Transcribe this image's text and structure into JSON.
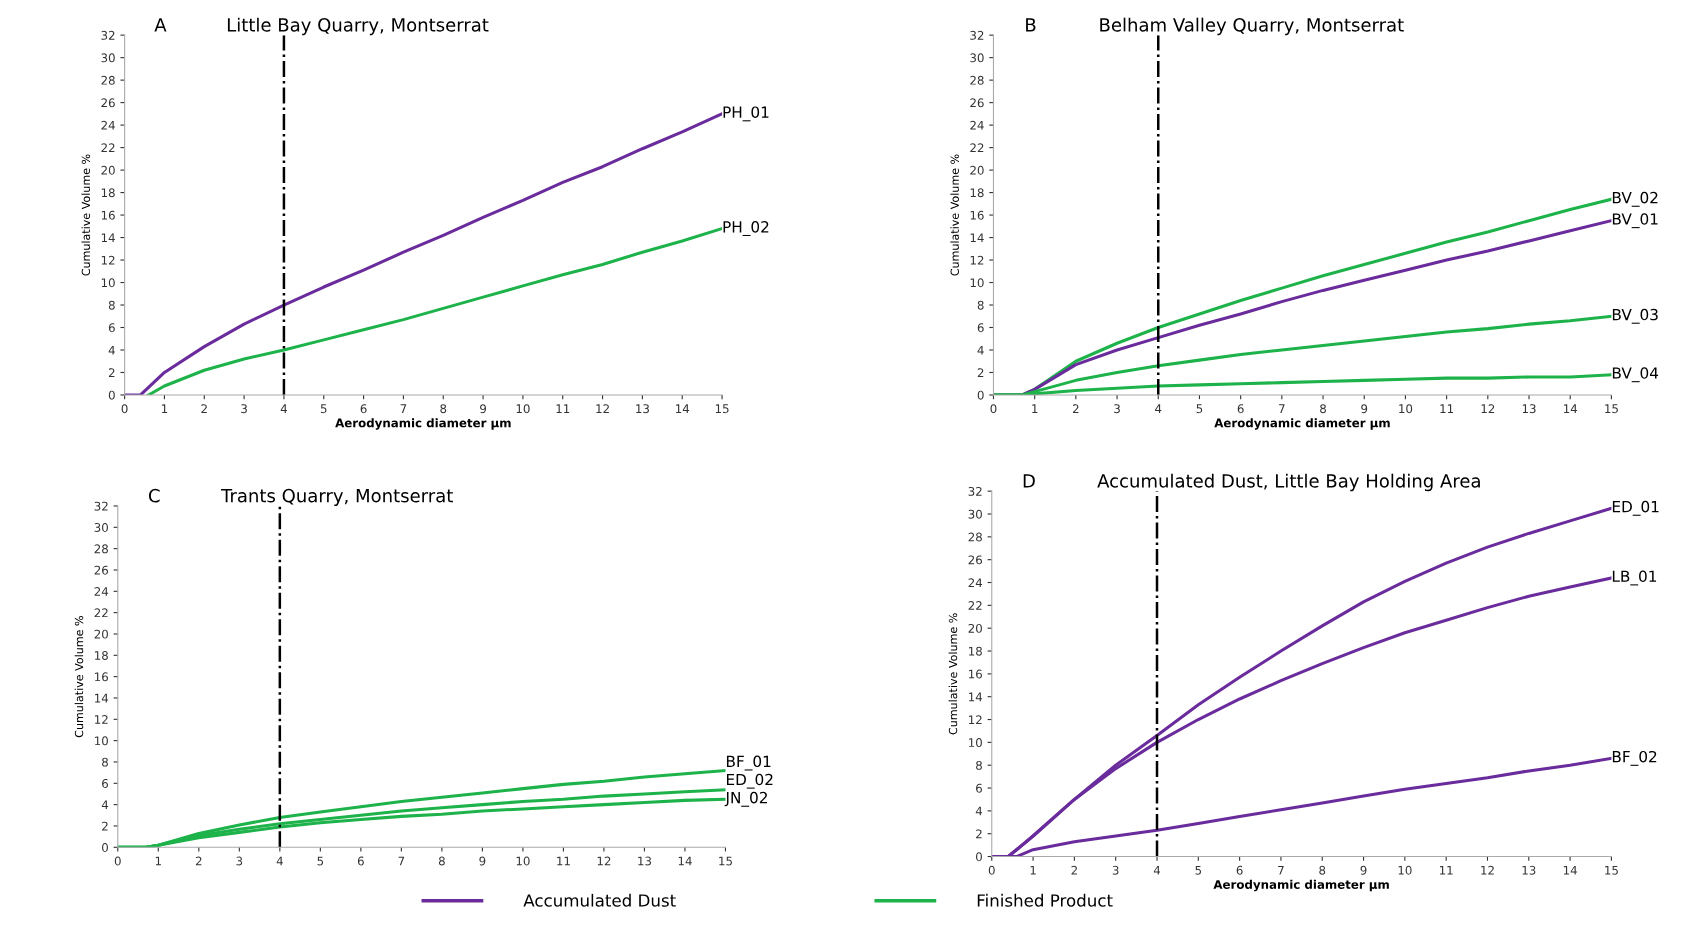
{
  "chart_data": [
    {
      "type": "line",
      "title": "Little Bay Quarry, Montserrat",
      "xlabel": "Aerodynamic diameter µm",
      "ylabel": "Cumulative Volume %",
      "annotations": [
        "A"
      ],
      "xlim": [
        0,
        15
      ],
      "ylim": [
        0,
        32
      ],
      "xticks": [
        0,
        1,
        2,
        3,
        4,
        5,
        6,
        7,
        8,
        9,
        10,
        11,
        12,
        13,
        14,
        15
      ],
      "yticks": [
        0,
        2,
        4,
        6,
        8,
        10,
        12,
        14,
        16,
        18,
        20,
        22,
        24,
        26,
        28,
        30,
        32
      ],
      "grid": false,
      "marker": "none",
      "line_style": "solid",
      "ref_lines": [
        {
          "axis": "x",
          "value": 4,
          "color": "#000000",
          "line_style": "dashdot"
        }
      ],
      "series": [
        {
          "name": "PH_01",
          "color": "#6a2c9c",
          "x": [
            0,
            0.4,
            1,
            2,
            2.5,
            3,
            4,
            5,
            6,
            7,
            8,
            9,
            10,
            11,
            12,
            13,
            14,
            15
          ],
          "values": [
            0,
            0,
            2,
            4.3,
            5.3,
            6.3,
            8,
            9.6,
            11.1,
            12.7,
            14.2,
            15.8,
            17.3,
            18.9,
            20.3,
            21.9,
            23.4,
            25
          ]
        },
        {
          "name": "PH_02",
          "color": "#1db34a",
          "x": [
            0.6,
            1,
            2,
            3,
            4,
            5,
            6,
            7,
            8,
            9,
            10,
            11,
            12,
            13,
            14,
            15
          ],
          "values": [
            0,
            0.8,
            2.2,
            3.2,
            4,
            4.9,
            5.8,
            6.7,
            7.7,
            8.7,
            9.7,
            10.7,
            11.6,
            12.7,
            13.7,
            14.8
          ]
        }
      ]
    },
    {
      "type": "line",
      "title": "Belham Valley Quarry, Montserrat",
      "xlabel": "Aerodynamic diameter µm",
      "ylabel": "Cumulative Volume %",
      "annotations": [
        "B"
      ],
      "xlim": [
        0,
        15
      ],
      "ylim": [
        0,
        32
      ],
      "xticks": [
        0,
        1,
        2,
        3,
        4,
        5,
        6,
        7,
        8,
        9,
        10,
        11,
        12,
        13,
        14,
        15
      ],
      "yticks": [
        0,
        2,
        4,
        6,
        8,
        10,
        12,
        14,
        16,
        18,
        20,
        22,
        24,
        26,
        28,
        30,
        32
      ],
      "grid": false,
      "marker": "none",
      "line_style": "solid",
      "ref_lines": [
        {
          "axis": "x",
          "value": 4,
          "color": "#000000",
          "line_style": "dashdot"
        }
      ],
      "series": [
        {
          "name": "BV_02",
          "color": "#1db34a",
          "x": [
            0,
            0.7,
            1,
            2,
            3,
            4,
            5,
            6,
            7,
            8,
            9,
            10,
            11,
            12,
            13,
            14,
            15
          ],
          "values": [
            0,
            0,
            0.5,
            3,
            4.6,
            6,
            7.2,
            8.4,
            9.5,
            10.6,
            11.6,
            12.6,
            13.6,
            14.5,
            15.5,
            16.5,
            17.4
          ]
        },
        {
          "name": "BV_01",
          "color": "#6a2c9c",
          "x": [
            0,
            0.7,
            1,
            2,
            3,
            4,
            5,
            6,
            7,
            8,
            9,
            10,
            11,
            12,
            13,
            14,
            15
          ],
          "values": [
            0,
            0,
            0.5,
            2.7,
            4,
            5.1,
            6.2,
            7.2,
            8.3,
            9.3,
            10.2,
            11.1,
            12,
            12.8,
            13.7,
            14.6,
            15.5
          ]
        },
        {
          "name": "BV_03",
          "color": "#1db34a",
          "x": [
            0,
            0.7,
            1,
            2,
            3,
            4,
            5,
            6,
            7,
            8,
            9,
            10,
            11,
            12,
            13,
            14,
            15
          ],
          "values": [
            0,
            0,
            0.3,
            1.3,
            2,
            2.6,
            3.1,
            3.6,
            4,
            4.4,
            4.8,
            5.2,
            5.6,
            5.9,
            6.3,
            6.6,
            7.0
          ]
        },
        {
          "name": "BV_04",
          "color": "#1db34a",
          "x": [
            0,
            0.7,
            1,
            2,
            3,
            4,
            5,
            6,
            7,
            8,
            9,
            10,
            11,
            12,
            13,
            14,
            15
          ],
          "values": [
            0,
            0,
            0.1,
            0.4,
            0.6,
            0.8,
            0.9,
            1.0,
            1.1,
            1.2,
            1.3,
            1.4,
            1.5,
            1.5,
            1.6,
            1.6,
            1.8
          ]
        }
      ]
    },
    {
      "type": "line",
      "title": "Trants Quarry, Montserrat",
      "ylabel": "Cumulative Volume %",
      "annotations": [
        "C",
        "Accumulated Dust",
        "Finished Product"
      ],
      "legend": "bottom",
      "xlim": [
        0,
        15
      ],
      "ylim": [
        0,
        32
      ],
      "xticks": [
        0,
        1,
        2,
        3,
        4,
        5,
        6,
        7,
        8,
        9,
        10,
        11,
        12,
        13,
        14,
        15
      ],
      "yticks": [
        0,
        2,
        4,
        6,
        8,
        10,
        12,
        14,
        16,
        18,
        20,
        22,
        24,
        26,
        28,
        30,
        32
      ],
      "grid": false,
      "marker": "none",
      "line_style": "solid",
      "ref_lines": [
        {
          "axis": "x",
          "value": 4,
          "color": "#000000",
          "line_style": "dashdot"
        }
      ],
      "series": [
        {
          "name": "BF_01",
          "color": "#1db34a",
          "x": [
            0,
            0.7,
            1,
            2,
            3,
            4,
            5,
            6,
            7,
            8,
            9,
            10,
            11,
            12,
            13,
            14,
            15
          ],
          "values": [
            0,
            0,
            0.2,
            1.3,
            2.1,
            2.8,
            3.3,
            3.8,
            4.3,
            4.7,
            5.1,
            5.5,
            5.9,
            6.2,
            6.6,
            6.9,
            7.2
          ]
        },
        {
          "name": "ED_02",
          "color": "#1db34a",
          "x": [
            0,
            0.7,
            1,
            2,
            3,
            4,
            5,
            6,
            7,
            8,
            9,
            10,
            11,
            12,
            13,
            14,
            15
          ],
          "values": [
            0,
            0,
            0.2,
            1.1,
            1.7,
            2.2,
            2.6,
            3.0,
            3.4,
            3.7,
            4.0,
            4.3,
            4.5,
            4.8,
            5.0,
            5.2,
            5.4
          ]
        },
        {
          "name": "JN_02",
          "color": "#1db34a",
          "x": [
            0,
            0.7,
            1,
            2,
            3,
            4,
            5,
            6,
            7,
            8,
            9,
            10,
            11,
            12,
            13,
            14,
            15
          ],
          "values": [
            0,
            0,
            0.2,
            0.9,
            1.4,
            1.9,
            2.3,
            2.6,
            2.9,
            3.1,
            3.4,
            3.6,
            3.8,
            4.0,
            4.2,
            4.4,
            4.5
          ]
        }
      ]
    },
    {
      "type": "line",
      "title": "Accumulated Dust, Little Bay Holding Area",
      "xlabel": "Aerodynamic diameter µm",
      "ylabel": "Cumulative Volume %",
      "annotations": [
        "D"
      ],
      "xlim": [
        0,
        15
      ],
      "ylim": [
        0,
        32
      ],
      "xticks": [
        0,
        1,
        2,
        3,
        4,
        5,
        6,
        7,
        8,
        9,
        10,
        11,
        12,
        13,
        14,
        15
      ],
      "yticks": [
        0,
        2,
        4,
        6,
        8,
        10,
        12,
        14,
        16,
        18,
        20,
        22,
        24,
        26,
        28,
        30,
        32
      ],
      "grid": false,
      "marker": "none",
      "line_style": "solid",
      "ref_lines": [
        {
          "axis": "x",
          "value": 4,
          "color": "#000000",
          "line_style": "dashdot"
        }
      ],
      "series": [
        {
          "name": "ED_01",
          "color": "#6a2c9c",
          "x": [
            0,
            0.4,
            1,
            2,
            3,
            4,
            5,
            6,
            7,
            8,
            9,
            10,
            11,
            12,
            13,
            14,
            15
          ],
          "values": [
            0,
            0,
            1.8,
            5,
            8,
            10.6,
            13.3,
            15.7,
            18,
            20.2,
            22.3,
            24.1,
            25.7,
            27.1,
            28.3,
            29.4,
            30.5
          ]
        },
        {
          "name": "LB_01",
          "color": "#6a2c9c",
          "x": [
            0,
            0.4,
            1,
            2,
            3,
            4,
            5,
            6,
            7,
            8,
            9,
            10,
            11,
            12,
            13,
            14,
            15
          ],
          "values": [
            0,
            0,
            1.8,
            5,
            7.7,
            10,
            12,
            13.8,
            15.4,
            16.9,
            18.3,
            19.6,
            20.7,
            21.8,
            22.8,
            23.6,
            24.4
          ]
        },
        {
          "name": "BF_02",
          "color": "#6a2c9c",
          "x": [
            0,
            0.6,
            1,
            2,
            3,
            4,
            5,
            6,
            7,
            8,
            9,
            10,
            11,
            12,
            13,
            14,
            15
          ],
          "values": [
            0,
            0,
            0.6,
            1.3,
            1.8,
            2.3,
            2.9,
            3.5,
            4.1,
            4.7,
            5.3,
            5.9,
            6.4,
            6.9,
            7.5,
            8.0,
            8.6
          ]
        }
      ]
    }
  ]
}
